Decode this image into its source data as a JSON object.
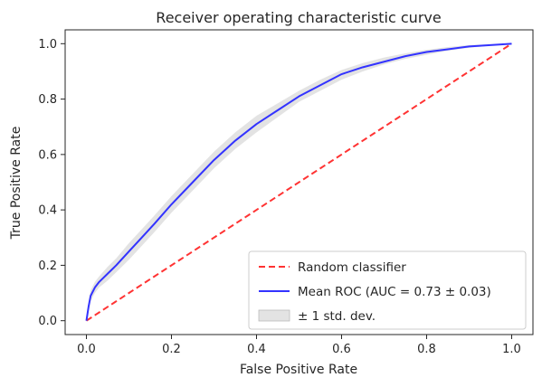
{
  "chart_data": {
    "type": "line",
    "title": "Receiver operating characteristic curve",
    "xlabel": "False Positive Rate",
    "ylabel": "True Positive Rate",
    "xlim": [
      -0.05,
      1.05
    ],
    "ylim": [
      -0.05,
      1.05
    ],
    "xticks": [
      0.0,
      0.2,
      0.4,
      0.6,
      0.8,
      1.0
    ],
    "yticks": [
      0.0,
      0.2,
      0.4,
      0.6,
      0.8,
      1.0
    ],
    "xtick_labels": [
      "0.0",
      "0.2",
      "0.4",
      "0.6",
      "0.8",
      "1.0"
    ],
    "ytick_labels": [
      "0.0",
      "0.2",
      "0.4",
      "0.6",
      "0.8",
      "1.0"
    ],
    "grid": false,
    "legend_position": "lower-right",
    "series": [
      {
        "name": "Random classifier",
        "style": "dashed",
        "color": "#ff3333",
        "x": [
          0.0,
          1.0
        ],
        "y": [
          0.0,
          1.0
        ]
      },
      {
        "name": "Mean ROC (AUC = 0.73 ± 0.03)",
        "style": "solid",
        "color": "#3333ff",
        "x": [
          0.0,
          0.005,
          0.01,
          0.02,
          0.03,
          0.05,
          0.07,
          0.1,
          0.13,
          0.16,
          0.2,
          0.25,
          0.3,
          0.35,
          0.4,
          0.45,
          0.5,
          0.55,
          0.6,
          0.65,
          0.7,
          0.75,
          0.8,
          0.85,
          0.9,
          0.95,
          1.0
        ],
        "y": [
          0.0,
          0.05,
          0.09,
          0.12,
          0.14,
          0.17,
          0.2,
          0.25,
          0.3,
          0.35,
          0.42,
          0.5,
          0.58,
          0.65,
          0.71,
          0.76,
          0.81,
          0.85,
          0.89,
          0.915,
          0.935,
          0.955,
          0.97,
          0.98,
          0.99,
          0.995,
          1.0
        ]
      },
      {
        "name": "± 1 std. dev.",
        "style": "band",
        "color": "#cccccc",
        "x": [
          0.0,
          0.005,
          0.01,
          0.02,
          0.03,
          0.05,
          0.07,
          0.1,
          0.13,
          0.16,
          0.2,
          0.25,
          0.3,
          0.35,
          0.4,
          0.45,
          0.5,
          0.55,
          0.6,
          0.65,
          0.7,
          0.75,
          0.8,
          0.85,
          0.9,
          0.95,
          1.0
        ],
        "lower": [
          0.0,
          0.03,
          0.07,
          0.1,
          0.12,
          0.145,
          0.175,
          0.22,
          0.27,
          0.32,
          0.39,
          0.47,
          0.55,
          0.62,
          0.68,
          0.735,
          0.79,
          0.83,
          0.87,
          0.9,
          0.925,
          0.945,
          0.96,
          0.975,
          0.985,
          0.993,
          1.0
        ],
        "upper": [
          0.0,
          0.07,
          0.11,
          0.14,
          0.16,
          0.195,
          0.225,
          0.28,
          0.33,
          0.38,
          0.45,
          0.53,
          0.61,
          0.68,
          0.74,
          0.785,
          0.83,
          0.87,
          0.905,
          0.93,
          0.95,
          0.965,
          0.978,
          0.988,
          0.995,
          0.998,
          1.0
        ]
      }
    ],
    "legend": [
      {
        "label": "Random classifier",
        "kind": "dashed",
        "color": "#ff3333"
      },
      {
        "label": "Mean ROC (AUC = 0.73 ± 0.03)",
        "kind": "solid",
        "color": "#3333ff"
      },
      {
        "label": "± 1 std. dev.",
        "kind": "band",
        "color": "#cccccc"
      }
    ]
  }
}
